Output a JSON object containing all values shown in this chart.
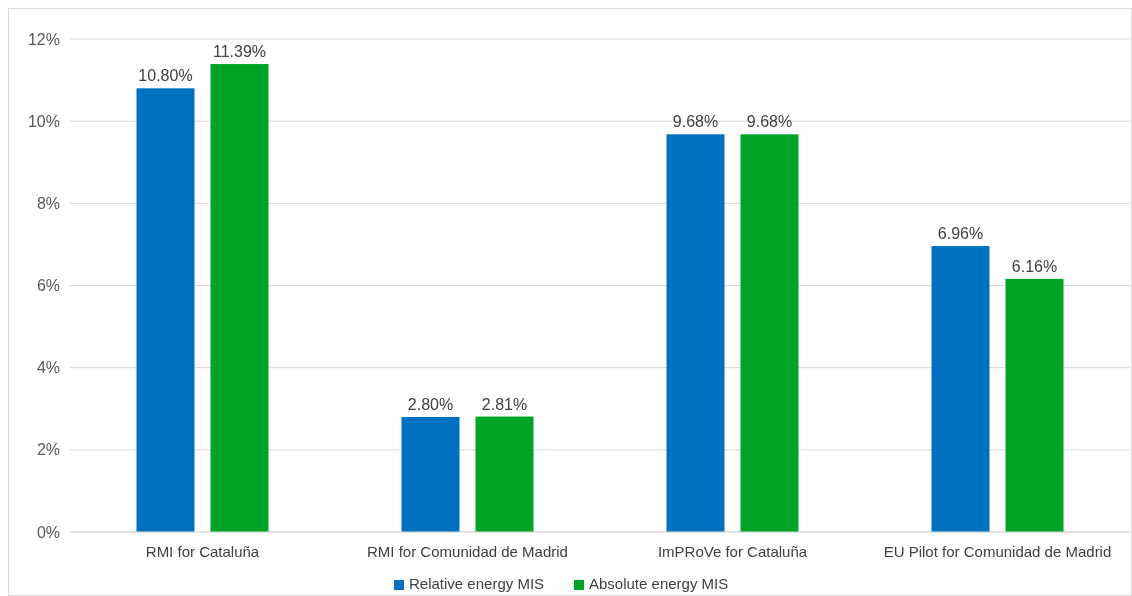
{
  "chart_data": {
    "type": "bar",
    "categories": [
      "RMI for Cataluña",
      "RMI for Comunidad de Madrid",
      "ImPRoVe for Cataluña",
      "EU Pilot for Comunidad de Madrid"
    ],
    "series": [
      {
        "name": "Relative energy MIS",
        "color": "#0070c0",
        "values": [
          10.8,
          2.8,
          9.68,
          6.96
        ],
        "value_labels": [
          "10.80%",
          "2.80%",
          "9.68%",
          "6.96%"
        ]
      },
      {
        "name": "Absolute energy MIS",
        "color": "#00a325",
        "values": [
          11.39,
          2.81,
          9.68,
          6.16
        ],
        "value_labels": [
          "11.39%",
          "2.81%",
          "9.68%",
          "6.16%"
        ]
      }
    ],
    "ylim": [
      0,
      12
    ],
    "yticks": [
      {
        "value": 0,
        "label": "0%"
      },
      {
        "value": 2,
        "label": "2%"
      },
      {
        "value": 4,
        "label": "4%"
      },
      {
        "value": 6,
        "label": "6%"
      },
      {
        "value": 8,
        "label": "8%"
      },
      {
        "value": 10,
        "label": "10%"
      },
      {
        "value": 12,
        "label": "12%"
      }
    ],
    "grid": "y",
    "legend": "bottom"
  }
}
